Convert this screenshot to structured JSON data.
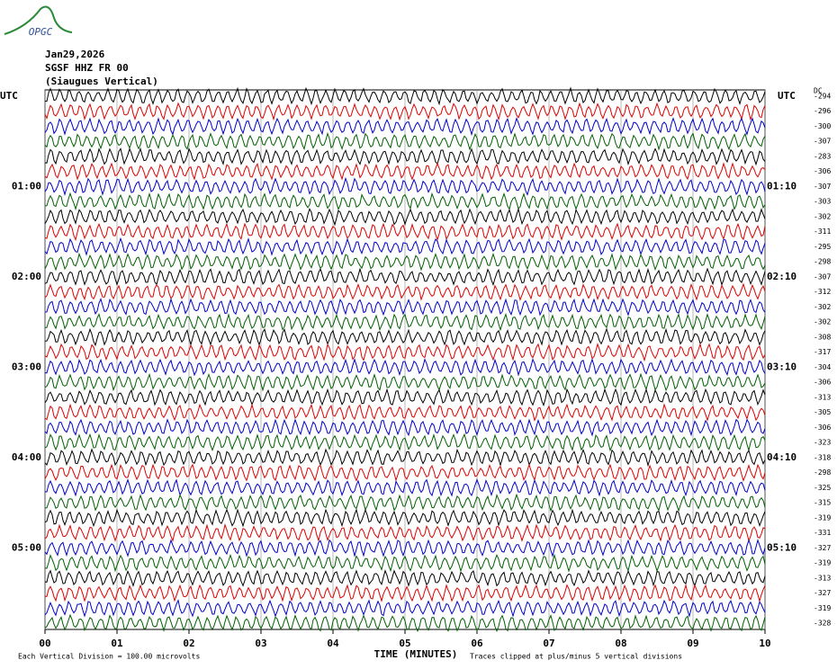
{
  "logo": "OPGC",
  "chart_data": {
    "type": "helicorder",
    "title_lines": [
      "Jan29,2026",
      "SGSF HHZ FR 00",
      "(Siaugues Vertical)"
    ],
    "left_axis_label": "UTC",
    "right_axis_label": "UTC",
    "offset_header": "DC",
    "left_labels": [
      "01:00",
      "02:00",
      "03:00",
      "04:00",
      "05:00"
    ],
    "right_labels": [
      "01:10",
      "02:10",
      "03:10",
      "04:10",
      "05:10"
    ],
    "offsets": [
      -294,
      -296,
      -300,
      -307,
      -283,
      -306,
      -307,
      -303,
      -302,
      -311,
      -295,
      -298,
      -307,
      -312,
      -302,
      -302,
      -308,
      -317,
      -304,
      -306,
      -313,
      -305,
      -306,
      -323,
      -318,
      -298,
      -325,
      -315,
      -319,
      -331,
      -327,
      -319,
      -313,
      -327,
      -319,
      -328
    ],
    "colors": [
      "#000000",
      "#e00000",
      "#0000d0",
      "#006000"
    ],
    "xlabel": "TIME (MINUTES)",
    "xlim": [
      0,
      10
    ],
    "xticks": [
      {
        "value": 0,
        "label": "00"
      },
      {
        "value": 1,
        "label": "01"
      },
      {
        "value": 2,
        "label": "02"
      },
      {
        "value": 3,
        "label": "03"
      },
      {
        "value": 4,
        "label": "04"
      },
      {
        "value": 5,
        "label": "05"
      },
      {
        "value": 6,
        "label": "06"
      },
      {
        "value": 7,
        "label": "07"
      },
      {
        "value": 8,
        "label": "08"
      },
      {
        "value": 9,
        "label": "09"
      },
      {
        "value": 10,
        "label": "10"
      }
    ],
    "grid": true,
    "footnote_left": "Each Vertical Division =  100.00 microvolts",
    "footnote_right": "Traces clipped at plus/minus 5 vertical divisions"
  }
}
